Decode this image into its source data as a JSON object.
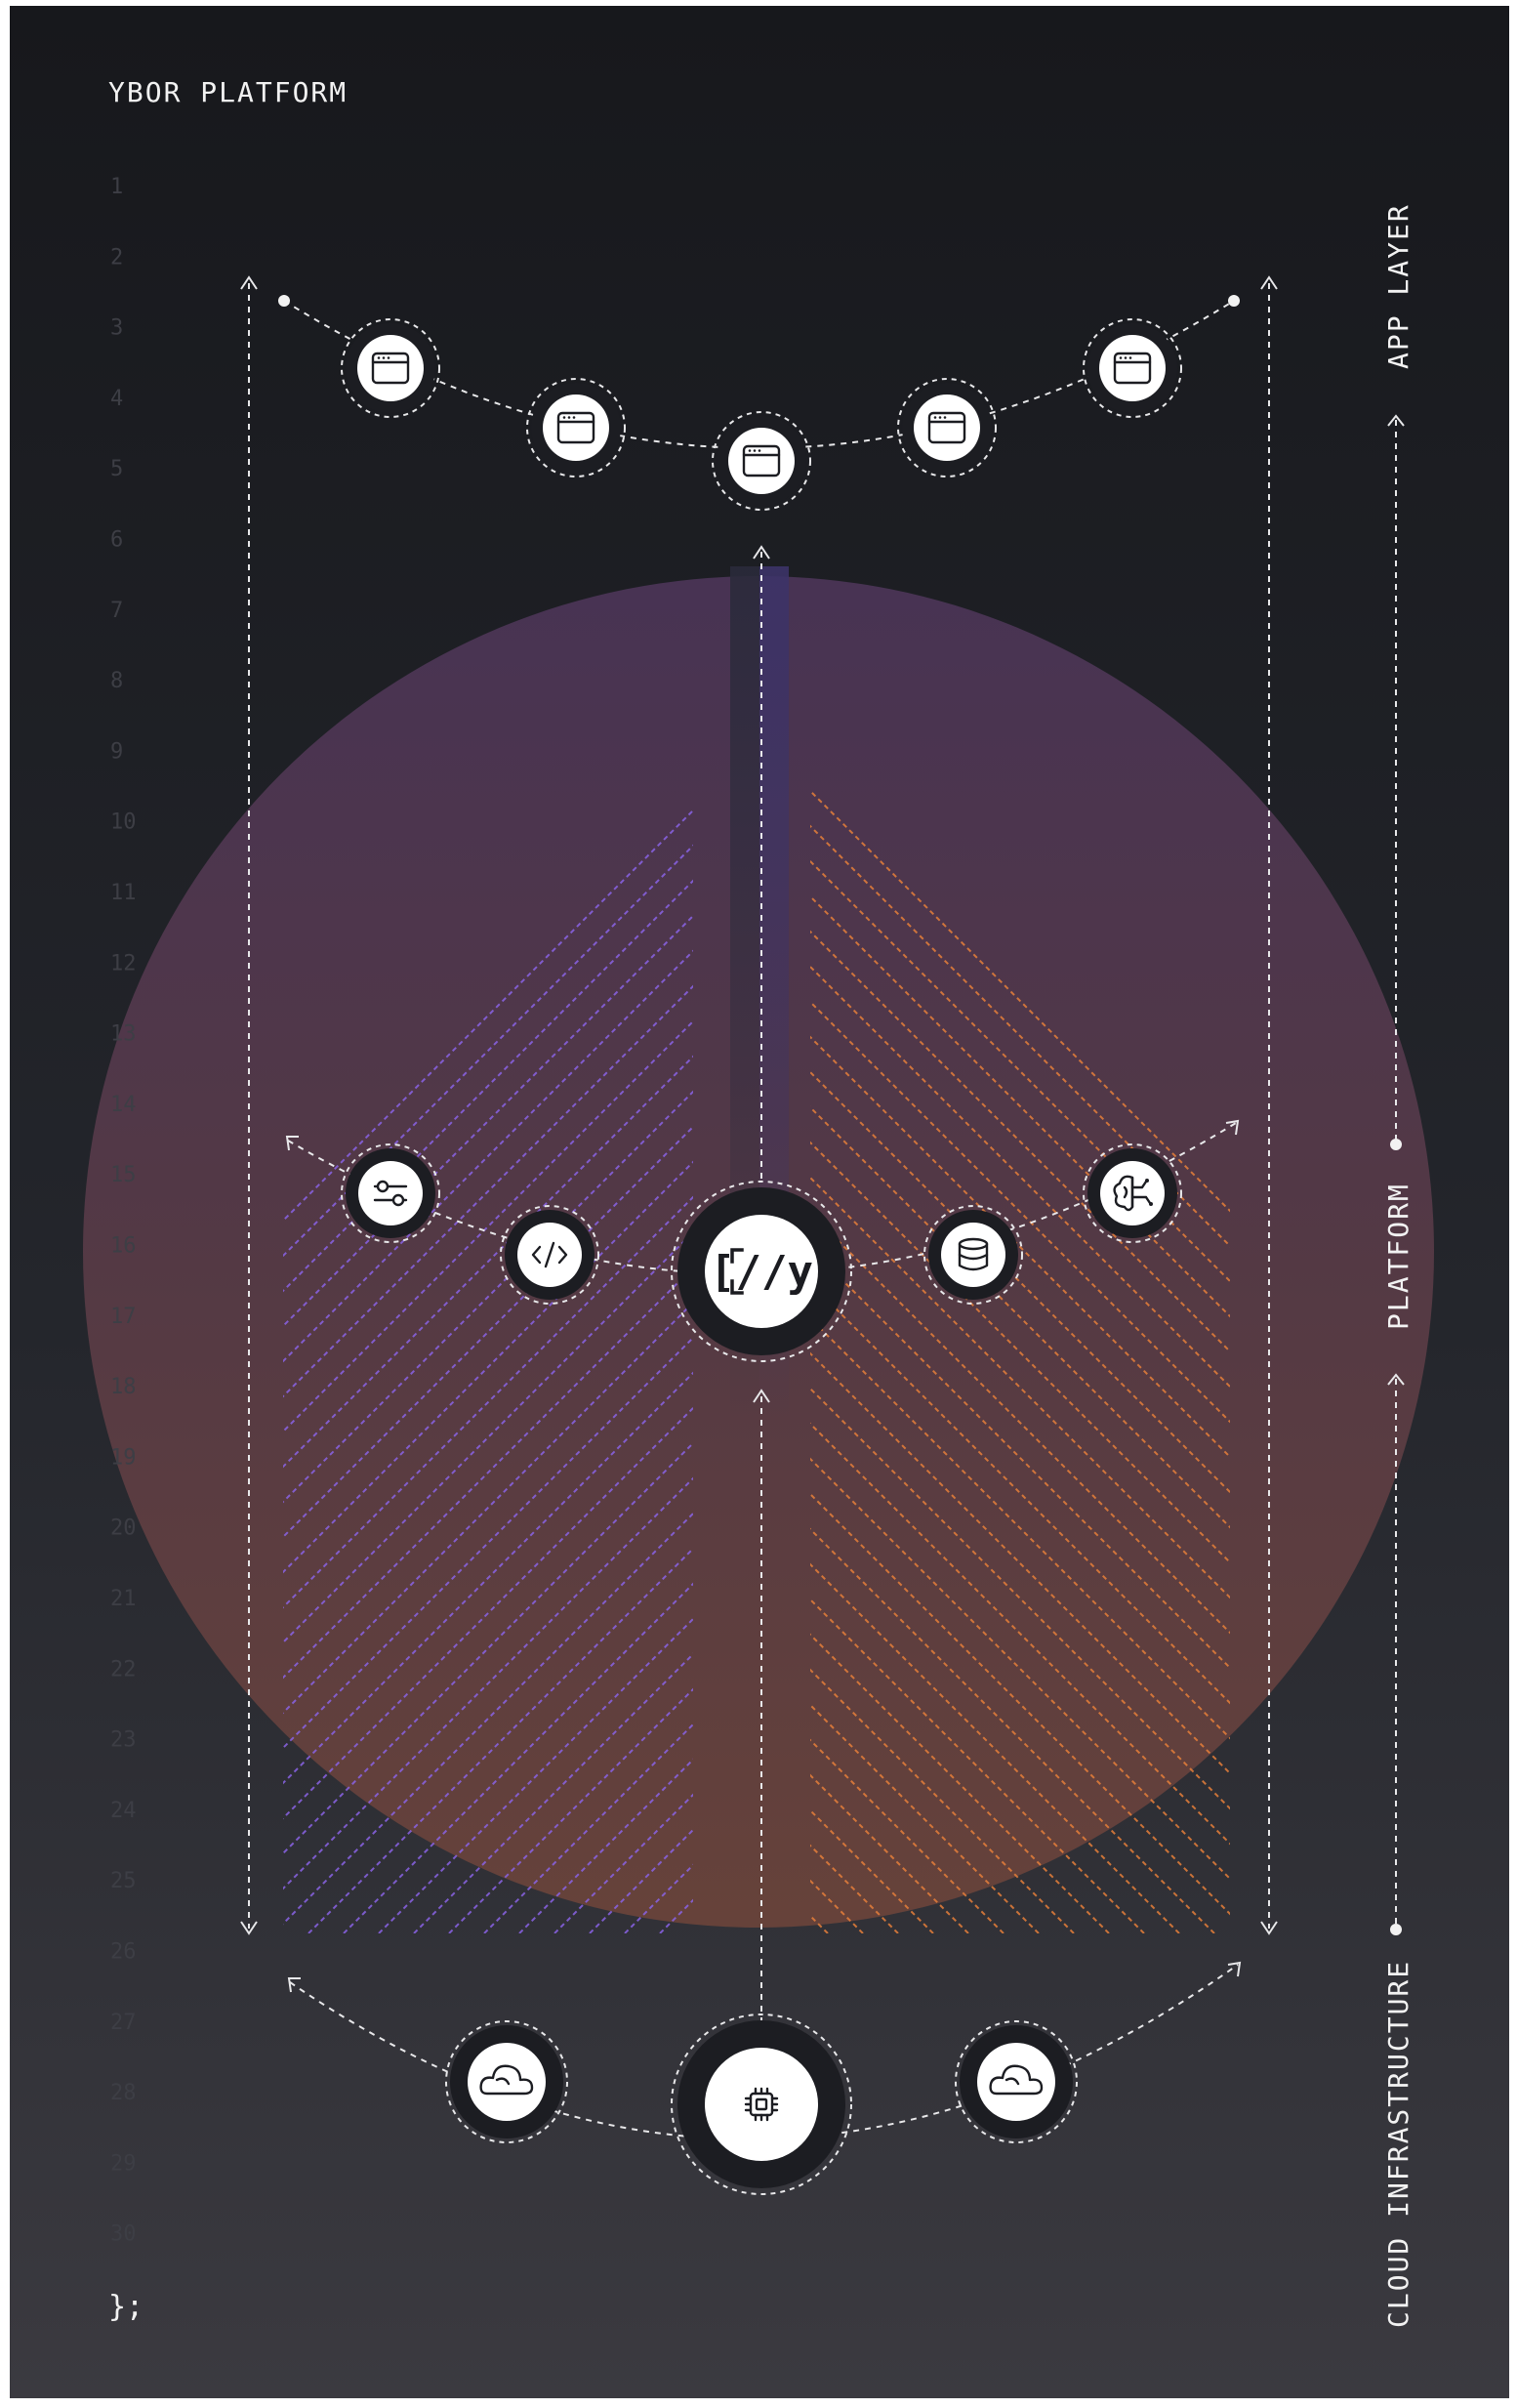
{
  "brand_title": "YBOR PLATFORM",
  "footer_code": "};",
  "line_numbers": [
    "1",
    "2",
    "3",
    "4",
    "5",
    "6",
    "7",
    "8",
    "9",
    "10",
    "11",
    "12",
    "13",
    "14",
    "15",
    "16",
    "17",
    "18",
    "19",
    "20",
    "21",
    "22",
    "23",
    "24",
    "25",
    "26",
    "27",
    "28",
    "29",
    "30"
  ],
  "layers": {
    "app": "APP LAYER",
    "platform": "PLATFORM",
    "cloud": "CLOUD INFRASTRUCTURE"
  },
  "center_logo_text": "[//y",
  "colors": {
    "background_top": "#18191d",
    "background_bottom": "#3a3a40",
    "purple_hatch": "#8a63e6",
    "orange_hatch": "#e67f3a",
    "node_fill": "#ffffff",
    "node_ring": "#1c1d22"
  },
  "nodes": {
    "app": [
      "browser-window-icon",
      "browser-window-icon",
      "browser-window-icon",
      "browser-window-icon",
      "browser-window-icon"
    ],
    "platform": [
      "sliders-icon",
      "code-icon",
      "ybor-logo-icon",
      "database-icon",
      "brain-icon"
    ],
    "cloud": [
      "cloud-icon",
      "chip-icon",
      "cloud-icon"
    ]
  }
}
